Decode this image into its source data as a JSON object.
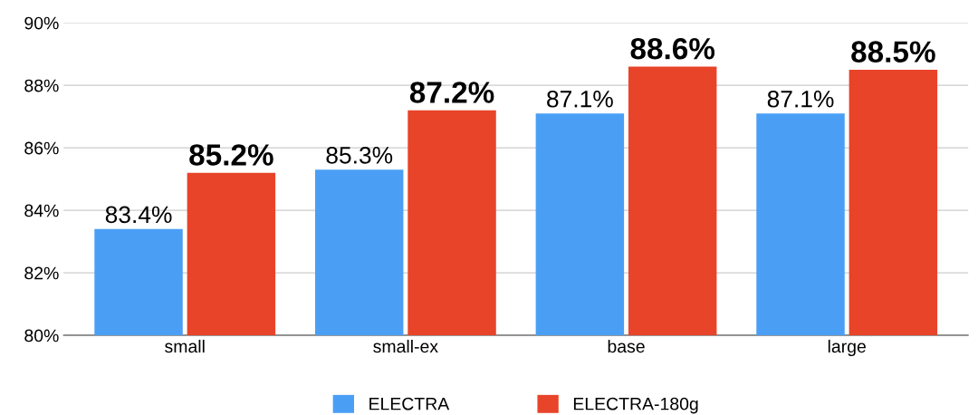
{
  "chart_data": {
    "type": "bar",
    "categories": [
      "small",
      "small-ex",
      "base",
      "large"
    ],
    "series": [
      {
        "name": "ELECTRA",
        "color": "#4a9ff5",
        "values": [
          83.4,
          85.3,
          87.1,
          87.1
        ],
        "value_labels": [
          "83.4%",
          "85.3%",
          "87.1%",
          "87.1%"
        ]
      },
      {
        "name": "ELECTRA-180g",
        "color": "#e8442a",
        "values": [
          85.2,
          87.2,
          88.6,
          88.5
        ],
        "value_labels": [
          "85.2%",
          "87.2%",
          "88.6%",
          "88.5%"
        ]
      }
    ],
    "ylim": [
      80,
      90
    ],
    "yticks": [
      {
        "value": 80,
        "label": "80%"
      },
      {
        "value": 82,
        "label": "82%"
      },
      {
        "value": 84,
        "label": "84%"
      },
      {
        "value": 86,
        "label": "86%"
      },
      {
        "value": 88,
        "label": "88%"
      },
      {
        "value": 90,
        "label": "90%"
      }
    ],
    "grid": "y",
    "legend": "bottom"
  }
}
